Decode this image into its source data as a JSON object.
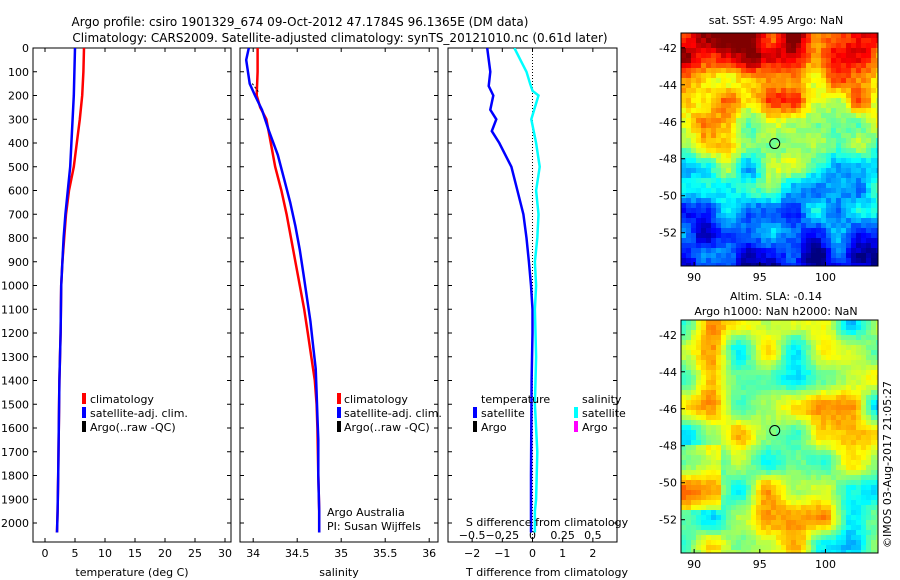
{
  "header": {
    "title_line1": "Argo profile: csiro 1901329_674 09-Oct-2012 47.1784S 96.1365E (DM data)",
    "title_line2": "Climatology: CARS2009. Satellite-adjusted climatology: synTS_20121010.nc (0.61d later)"
  },
  "colors": {
    "climatology": "#ff0000",
    "satellite": "#0000ff",
    "argo": "#000000",
    "salinity_satellite": "#00ffff",
    "salinity_argo": "#ff00ff"
  },
  "chart_data": [
    {
      "id": "temperature",
      "type": "line",
      "xlabel": "temperature (deg C)",
      "ylabel": "",
      "xlim": [
        -2,
        31
      ],
      "ylim": [
        2080,
        0
      ],
      "xticks": [
        0,
        5,
        10,
        15,
        20,
        25,
        30
      ],
      "yticks": [
        0,
        100,
        200,
        300,
        400,
        500,
        600,
        700,
        800,
        900,
        1000,
        1100,
        1200,
        1300,
        1400,
        1500,
        1600,
        1700,
        1800,
        1900,
        2000
      ],
      "legend": {
        "position": "center-right",
        "entries": [
          "climatology",
          "satellite-adj. clim.",
          "Argo(..raw -QC)"
        ]
      },
      "series": [
        {
          "name": "climatology",
          "color": "#ff0000",
          "x": [
            6.5,
            6.4,
            6.2,
            5.8,
            5.3,
            4.8,
            4.0,
            3.5,
            3.2,
            2.9,
            2.7,
            2.6,
            2.4,
            2.3,
            2.2,
            2.1,
            2.0
          ],
          "y": [
            0,
            100,
            200,
            300,
            400,
            500,
            600,
            700,
            800,
            900,
            1000,
            1200,
            1400,
            1600,
            1800,
            1950,
            2040
          ]
        },
        {
          "name": "satellite-adj. clim.",
          "color": "#0000ff",
          "x": [
            5.0,
            4.9,
            4.8,
            4.6,
            4.4,
            4.2,
            3.8,
            3.4,
            3.1,
            2.9,
            2.7,
            2.6,
            2.4,
            2.3,
            2.2,
            2.1,
            2.0
          ],
          "y": [
            0,
            100,
            200,
            300,
            400,
            500,
            600,
            700,
            800,
            900,
            1000,
            1200,
            1400,
            1600,
            1800,
            1950,
            2040
          ]
        }
      ]
    },
    {
      "id": "salinity",
      "type": "line",
      "xlabel": "salinity",
      "ylabel": "",
      "xlim": [
        33.85,
        36.1
      ],
      "ylim": [
        2080,
        0
      ],
      "xticks": [
        34,
        34.5,
        35,
        35.5,
        36
      ],
      "xticklabels": [
        "34",
        "34.5",
        "35",
        "35.5",
        "36"
      ],
      "legend": {
        "position": "center-right",
        "entries": [
          "climatology",
          "satellite-adj. clim.",
          "Argo(..raw -QC)"
        ]
      },
      "annotations": [
        "Argo Australia",
        "PI: Susan Wijffels"
      ],
      "series": [
        {
          "name": "climatology",
          "color": "#ff0000",
          "x": [
            34.05,
            34.05,
            34.04,
            34.08,
            34.15,
            34.2,
            34.25,
            34.32,
            34.38,
            34.43,
            34.48,
            34.53,
            34.58,
            34.62,
            34.66,
            34.7,
            34.72,
            34.73,
            34.74,
            34.75,
            34.75
          ],
          "y": [
            0,
            100,
            200,
            250,
            300,
            400,
            500,
            600,
            700,
            800,
            900,
            1000,
            1100,
            1200,
            1300,
            1400,
            1500,
            1600,
            1800,
            1950,
            2040
          ]
        },
        {
          "name": "satellite-adj. clim.",
          "color": "#0000ff",
          "x": [
            33.95,
            33.92,
            33.96,
            34.02,
            34.1,
            34.18,
            34.28,
            34.35,
            34.42,
            34.48,
            34.53,
            34.57,
            34.61,
            34.65,
            34.68,
            34.71,
            34.72,
            34.73,
            34.74,
            34.74,
            34.75,
            34.75
          ],
          "y": [
            0,
            50,
            150,
            200,
            260,
            350,
            450,
            550,
            650,
            750,
            850,
            950,
            1050,
            1150,
            1250,
            1350,
            1450,
            1550,
            1650,
            1800,
            1950,
            2040
          ]
        },
        {
          "name": "Argo",
          "color": "#000000",
          "x": [
            33.99,
            34.03,
            34.07
          ],
          "y": [
            150,
            170,
            190
          ]
        }
      ]
    },
    {
      "id": "difference",
      "type": "line",
      "xlabel": "T difference from climatology",
      "x2label": "S difference from climatology",
      "ylabel": "",
      "xlim": [
        -2.8,
        2.8
      ],
      "ylim": [
        2080,
        0
      ],
      "xticks": [
        -2,
        -1,
        0,
        1,
        2
      ],
      "xticklabels": [
        "−2",
        "−1",
        "0",
        "1",
        "2"
      ],
      "x2ticks": [
        -0.5,
        -0.25,
        0,
        0.25,
        0.5
      ],
      "x2ticklabels": [
        "−0.5",
        "−0.25",
        "0",
        "0.25",
        "0.5"
      ],
      "legend": {
        "position": "center",
        "entries": [
          "temperature",
          "salinity",
          "satellite",
          "Argo",
          "satellite",
          "Argo"
        ]
      },
      "series": [
        {
          "name": "temperature satellite",
          "color": "#0000ff",
          "x": [
            -1.5,
            -1.4,
            -1.45,
            -1.3,
            -1.4,
            -1.2,
            -1.35,
            -1.1,
            -0.7,
            -0.5,
            -0.3,
            -0.2,
            -0.12,
            -0.05,
            0,
            0,
            -0.03,
            -0.04,
            -0.05,
            -0.05,
            -0.05,
            -0.05
          ],
          "y": [
            0,
            100,
            160,
            200,
            260,
            300,
            350,
            400,
            500,
            600,
            700,
            800,
            900,
            1000,
            1100,
            1200,
            1400,
            1600,
            1800,
            1900,
            1950,
            2040
          ]
        },
        {
          "name": "salinity satellite",
          "color": "#00ffff",
          "x": [
            -0.15,
            -0.1,
            -0.05,
            -0.02,
            0.0,
            0.05,
            0.02,
            -0.01,
            0.03,
            0.06,
            0.03,
            0.05,
            0.04,
            0.02,
            0.03,
            0.02,
            0.03,
            0.02,
            0.04,
            0.03,
            0.02,
            0.02
          ],
          "y": [
            0,
            50,
            100,
            150,
            180,
            200,
            250,
            300,
            400,
            500,
            600,
            700,
            800,
            900,
            1000,
            1100,
            1300,
            1500,
            1700,
            1900,
            1950,
            2040
          ]
        }
      ]
    },
    {
      "id": "sst-map",
      "type": "heatmap",
      "title": "sat. SST: 4.95  Argo: NaN",
      "xlim": [
        89,
        104
      ],
      "ylim": [
        -53.8,
        -41.2
      ],
      "xticks": [
        90,
        95,
        100
      ],
      "yticks": [
        -42,
        -44,
        -46,
        -48,
        -50,
        -52
      ],
      "marker": {
        "lon": 96.1365,
        "lat": -47.1784
      }
    },
    {
      "id": "sla-map",
      "type": "heatmap",
      "title": "Altim. SLA: -0.14",
      "subtitle": "Argo h1000: NaN h2000: NaN",
      "xlim": [
        89,
        104
      ],
      "ylim": [
        -53.8,
        -41.2
      ],
      "xticks": [
        90,
        95,
        100
      ],
      "yticks": [
        -42,
        -44,
        -46,
        -48,
        -50,
        -52
      ],
      "marker": {
        "lon": 96.1365,
        "lat": -47.1784
      }
    }
  ],
  "legend_labels": {
    "climatology": "climatology",
    "satellite_adj": "satellite-adj. clim.",
    "argo_raw": "Argo(..raw -QC)",
    "temperature": "temperature",
    "salinity": "salinity",
    "satellite": "satellite",
    "argo": "Argo"
  },
  "footer": {
    "stamp": "©IMOS 03-Aug-2017 21:05:27"
  }
}
